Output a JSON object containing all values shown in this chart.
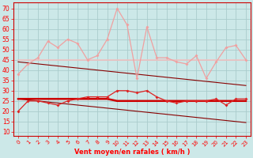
{
  "x": [
    0,
    1,
    2,
    3,
    4,
    5,
    6,
    7,
    8,
    9,
    10,
    11,
    12,
    13,
    14,
    15,
    16,
    17,
    18,
    19,
    20,
    21,
    22,
    23
  ],
  "series_rafales_jagged": [
    38,
    43,
    46,
    54,
    51,
    55,
    53,
    45,
    47,
    55,
    70,
    62,
    36,
    61,
    46,
    46,
    44,
    43,
    47,
    36,
    44,
    51,
    52,
    45
  ],
  "series_moyen_jagged": [
    20,
    25,
    25,
    24,
    23,
    25,
    26,
    27,
    27,
    27,
    30,
    30,
    29,
    30,
    27,
    25,
    24,
    25,
    25,
    25,
    26,
    23,
    26,
    26
  ],
  "series_rafales_flat": [
    45,
    45,
    45,
    45,
    45,
    45,
    45,
    45,
    45,
    45,
    45,
    45,
    45,
    45,
    45,
    45,
    45,
    45,
    45,
    45,
    45,
    45,
    45,
    45
  ],
  "series_moyen_flat": [
    26,
    26,
    26,
    26,
    26,
    26,
    26,
    26,
    26,
    26,
    25,
    25,
    25,
    25,
    25,
    25,
    25,
    25,
    25,
    25,
    25,
    25,
    25,
    25
  ],
  "series_rafales_reg": [
    44,
    43.5,
    43,
    42.5,
    42,
    41.5,
    41,
    40.5,
    40,
    39.5,
    39,
    38.5,
    38,
    37.5,
    37,
    36.5,
    36,
    35.5,
    35,
    34.5,
    34,
    33.5,
    33,
    32.5
  ],
  "series_moyen_reg": [
    26,
    25.5,
    25,
    24.5,
    24,
    23.5,
    23,
    22.5,
    22,
    21.5,
    21,
    20.5,
    20,
    19.5,
    19,
    18.5,
    18,
    17.5,
    17,
    16.5,
    16,
    15.5,
    15,
    14.5
  ],
  "bg_color": "#cce8e8",
  "grid_color": "#aacccc",
  "color_rafales_jagged": "#f0a0a0",
  "color_moyen_jagged": "#dd2222",
  "color_rafales_flat": "#f0c0c0",
  "color_moyen_flat": "#cc0000",
  "color_reg_dark": "#880000",
  "xlabel": "Vent moyen/en rafales ( km/h )",
  "yticks": [
    10,
    15,
    20,
    25,
    30,
    35,
    40,
    45,
    50,
    55,
    60,
    65,
    70
  ],
  "ylim": [
    8,
    73
  ],
  "xlim": [
    -0.5,
    23.5
  ]
}
